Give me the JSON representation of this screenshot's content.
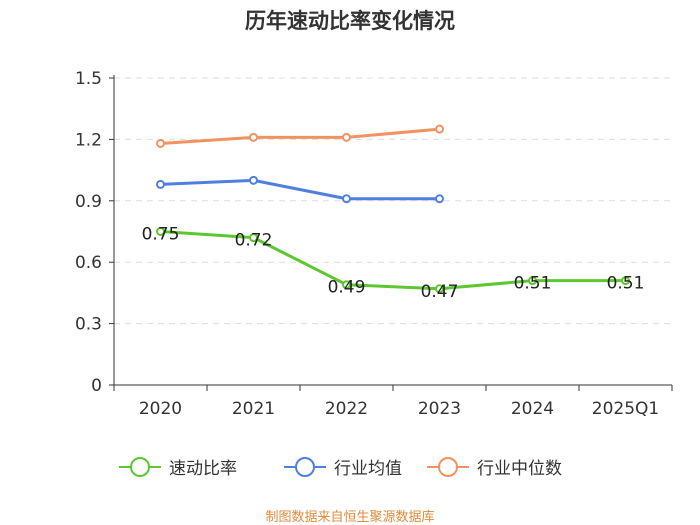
{
  "chart_data": {
    "type": "line",
    "title": "历年速动比率变化情况",
    "categories": [
      "2020",
      "2021",
      "2022",
      "2023",
      "2024",
      "2025Q1"
    ],
    "y_ticks": [
      "0",
      "0.3",
      "0.6",
      "0.9",
      "1.2",
      "1.5"
    ],
    "ylim": [
      0,
      1.5
    ],
    "grid": true,
    "legend_position": "bottom",
    "series": [
      {
        "name": "速动比率",
        "color": "#5cc72e",
        "values": [
          0.75,
          0.72,
          0.49,
          0.47,
          0.51,
          0.51
        ],
        "labels": [
          "0.75",
          "0.72",
          "0.49",
          "0.47",
          "0.51",
          "0.51"
        ]
      },
      {
        "name": "行业均值",
        "color": "#4f7fe0",
        "values": [
          0.98,
          1.0,
          0.91,
          0.91,
          null,
          null
        ]
      },
      {
        "name": "行业中位数",
        "color": "#f39261",
        "values": [
          1.18,
          1.21,
          1.21,
          1.25,
          null,
          null
        ]
      }
    ],
    "source": "制图数据来自恒生聚源数据库",
    "source_color": "#e08a3a"
  }
}
